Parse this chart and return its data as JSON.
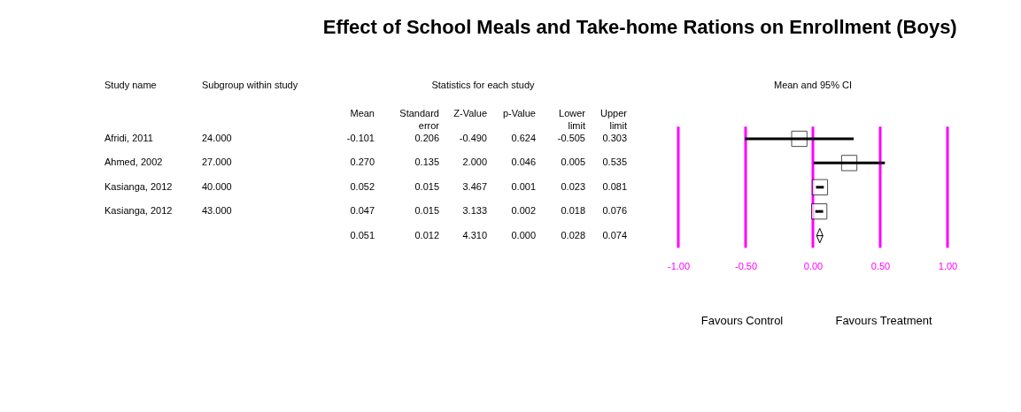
{
  "chart_data": [
    {
      "type": "other",
      "title": "Effect of School Meals and Take-home Rations on Enrollment (Boys)",
      "annotations": [
        "Study name",
        "Subgroup within study",
        "Statistics for each study",
        "Mean",
        "Standard error",
        "Z-Value",
        "p-Value",
        "Lower limit",
        "Upper limit",
        "Afridi, 2011",
        "24.000",
        "-0.101",
        "0.206",
        "-0.490",
        "0.624",
        "-0.505",
        "0.303",
        "Ahmed, 2002",
        "27.000",
        "0.270",
        "0.135",
        "2.000",
        "0.046",
        "0.005",
        "0.535",
        "Kasianga, 2012",
        "40.000",
        "0.052",
        "0.015",
        "3.467",
        "0.001",
        "0.023",
        "0.081",
        "Kasianga, 2012",
        "43.000",
        "0.047",
        "0.015",
        "3.133",
        "0.002",
        "0.018",
        "0.076",
        "0.051",
        "0.012",
        "4.310",
        "0.000",
        "0.028",
        "0.074"
      ]
    },
    {
      "type": "scatter",
      "orientation": "horizontal",
      "categories": [
        null,
        null,
        null,
        null,
        null
      ],
      "series": [
        {
          "color": "#000000",
          "marker": "square",
          "values": [
            -0.101,
            0.27,
            0.052,
            0.047,
            null
          ],
          "errors": [
            [
              -0.505,
              0.303
            ],
            [
              0.005,
              0.535
            ],
            [
              0.023,
              0.081
            ],
            [
              0.018,
              0.076
            ],
            null
          ]
        },
        {
          "color": "#000000",
          "marker": "diamond",
          "values": [
            null,
            null,
            null,
            null,
            0.051
          ],
          "errors": [
            null,
            null,
            null,
            null,
            [
              0.028,
              0.074
            ]
          ]
        }
      ],
      "xlim": [
        -1,
        1
      ],
      "xticks": [
        {
          "value": -1,
          "label": "-1.00"
        },
        {
          "value": -0.5,
          "label": "-0.50"
        },
        {
          "value": 0,
          "label": "0.00"
        },
        {
          "value": 0.5,
          "label": "0.50"
        },
        {
          "value": 1,
          "label": "1.00"
        }
      ],
      "tick_labels": "x",
      "grid": "x",
      "annotations": [
        "Mean and 95% CI",
        "Favours Control",
        "Favours Treatment"
      ]
    }
  ]
}
